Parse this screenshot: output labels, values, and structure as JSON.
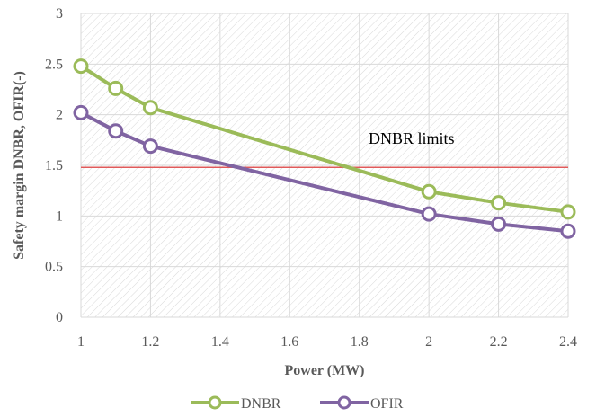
{
  "chart_data": {
    "type": "line",
    "x": [
      1,
      1.1,
      1.2,
      2,
      2.2,
      2.4
    ],
    "series": [
      {
        "name": "DNBR",
        "values": [
          2.48,
          2.26,
          2.07,
          1.24,
          1.13,
          1.04
        ],
        "color": "#9bbb59"
      },
      {
        "name": "OFIR",
        "values": [
          2.02,
          1.84,
          1.69,
          1.02,
          0.92,
          0.85
        ],
        "color": "#8064a2"
      }
    ],
    "xlabel": "Power (MW)",
    "ylabel": "Safety margin DNBR, OFIR(-)",
    "xlim": [
      1,
      2.4
    ],
    "ylim": [
      0,
      3
    ],
    "xticks": [
      1,
      1.2,
      1.4,
      1.6,
      1.8,
      2,
      2.2,
      2.4
    ],
    "yticks": [
      0,
      0.5,
      1,
      1.5,
      2,
      2.5,
      3
    ],
    "x_tick_labels": [
      "1",
      "1.2",
      "1.4",
      "1.6",
      "1.8",
      "2",
      "2.2",
      "2.4"
    ],
    "y_tick_labels": [
      "0",
      "0.5",
      "1",
      "1.5",
      "2",
      "2.5",
      "3"
    ],
    "reference_line": {
      "y": 1.48,
      "color": "#e05a5a",
      "label": "DNBR limits"
    },
    "grid": true,
    "background_pattern": "diagonal-hatch",
    "legend": {
      "position": "bottom",
      "entries": [
        "DNBR",
        "OFIR"
      ]
    }
  }
}
